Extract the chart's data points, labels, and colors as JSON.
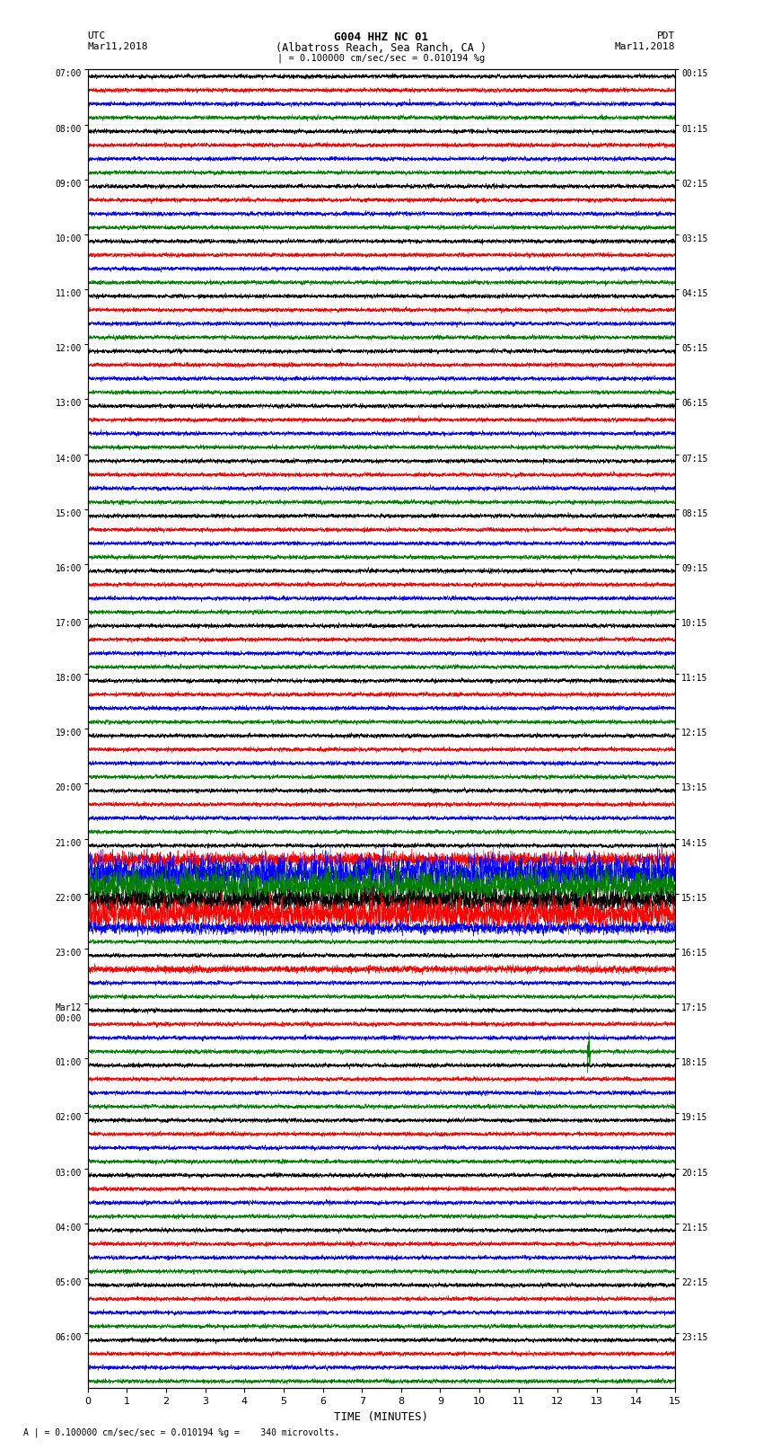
{
  "title_line1": "G004 HHZ NC 01",
  "title_line2": "(Albatross Reach, Sea Ranch, CA )",
  "scale_text": "| = 0.100000 cm/sec/sec = 0.010194 %g",
  "footer_text": "A | = 0.100000 cm/sec/sec = 0.010194 %g =    340 microvolts.",
  "xlabel": "TIME (MINUTES)",
  "utc_labels": [
    "07:00",
    "08:00",
    "09:00",
    "10:00",
    "11:00",
    "12:00",
    "13:00",
    "14:00",
    "15:00",
    "16:00",
    "17:00",
    "18:00",
    "19:00",
    "20:00",
    "21:00",
    "22:00",
    "23:00",
    "Mar12\n00:00",
    "01:00",
    "02:00",
    "03:00",
    "04:00",
    "05:00",
    "06:00"
  ],
  "pdt_labels": [
    "00:15",
    "01:15",
    "02:15",
    "03:15",
    "04:15",
    "05:15",
    "06:15",
    "07:15",
    "08:15",
    "09:15",
    "10:15",
    "11:15",
    "12:15",
    "13:15",
    "14:15",
    "15:15",
    "16:15",
    "17:15",
    "18:15",
    "19:15",
    "20:15",
    "21:15",
    "22:15",
    "23:15"
  ],
  "n_rows": 24,
  "traces_per_row": 4,
  "colors": [
    "black",
    "red",
    "blue",
    "green"
  ],
  "duration_minutes": 15,
  "fig_width": 8.5,
  "fig_height": 16.13,
  "background_color": "white",
  "line_width": 0.3,
  "noise_seed": 42
}
